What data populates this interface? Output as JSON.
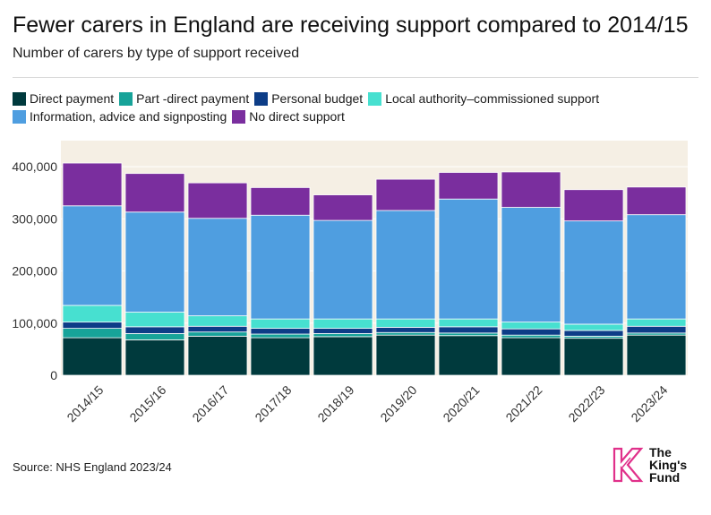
{
  "title": "Fewer carers in England are receiving support compared to 2014/15",
  "subtitle": "Number of carers by type of support received",
  "source": "Source: NHS England 2023/24",
  "logo": {
    "line1": "The",
    "line2": "King's",
    "line3": "Fund"
  },
  "colors": {
    "background": "#f5efe4",
    "gridline": "#ffffff"
  },
  "chart_data": {
    "type": "bar",
    "stacked": true,
    "title": "Fewer carers in England are receiving support compared to 2014/15",
    "subtitle": "Number of carers by type of support received",
    "xlabel": "",
    "ylabel": "",
    "ylim": [
      0,
      450000
    ],
    "yticks": [
      0,
      100000,
      200000,
      300000,
      400000
    ],
    "ytick_labels": [
      "0",
      "100,000",
      "200,000",
      "300,000",
      "400,000"
    ],
    "legend_position": "top-left",
    "grid": false,
    "categories": [
      "2014/15",
      "2015/16",
      "2016/17",
      "2017/18",
      "2018/19",
      "2019/20",
      "2020/21",
      "2021/22",
      "2022/23",
      "2023/24"
    ],
    "series": [
      {
        "name": "Direct payment",
        "color": "#003a3d",
        "values": [
          72000,
          68000,
          75000,
          72000,
          74000,
          77000,
          76000,
          72000,
          71000,
          77000
        ]
      },
      {
        "name": "Part -direct payment",
        "color": "#17a399",
        "values": [
          18000,
          12000,
          8000,
          7000,
          6000,
          5000,
          5000,
          5000,
          4000,
          4000
        ]
      },
      {
        "name": "Personal budget",
        "color": "#0d3d87",
        "values": [
          12000,
          13000,
          11000,
          11000,
          10000,
          10000,
          12000,
          12000,
          11000,
          13000
        ]
      },
      {
        "name": "Local authority–commissioned support",
        "color": "#47e0d0",
        "values": [
          32000,
          28000,
          20000,
          18000,
          18000,
          16000,
          15000,
          13000,
          12000,
          14000
        ]
      },
      {
        "name": "Information, advice and signposting",
        "color": "#4f9ee0",
        "values": [
          191000,
          192000,
          187000,
          199000,
          189000,
          208000,
          230000,
          220000,
          198000,
          200000
        ]
      },
      {
        "name": "No direct support",
        "color": "#7a2e9e",
        "values": [
          82000,
          74000,
          68000,
          53000,
          49000,
          60000,
          51000,
          68000,
          60000,
          53000
        ]
      }
    ]
  }
}
